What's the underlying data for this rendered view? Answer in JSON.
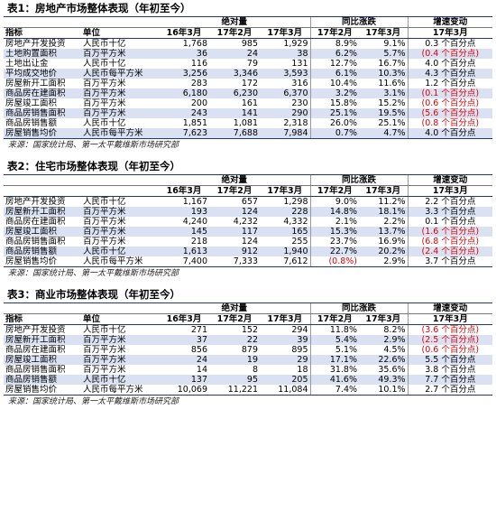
{
  "tables": [
    {
      "title": "表1：房地产市场整体表现（年初至今）",
      "group_headers": {
        "abs": "绝对量",
        "yoy": "同比涨跌",
        "chg": "增速变动"
      },
      "col_headers": [
        "指标",
        "单位",
        "16年3月",
        "17年2月",
        "17年3月",
        "17年2月",
        "17年3月",
        "17年3月"
      ],
      "rows": [
        {
          "name": "房地产开发投资",
          "unit": "人民币十亿",
          "a": "1,768",
          "b": "985",
          "c": "1,929",
          "d": "8.9%",
          "e": "9.1%",
          "f": "0.3 个百分点",
          "neg_d": false,
          "neg_f": false
        },
        {
          "name": "土地购置面积",
          "unit": "百万平方米",
          "a": "36",
          "b": "24",
          "c": "38",
          "d": "6.2%",
          "e": "5.7%",
          "f": "(0.4 个百分点)",
          "neg_d": false,
          "neg_f": true
        },
        {
          "name": "土地出让金",
          "unit": "人民币十亿",
          "a": "116",
          "b": "79",
          "c": "131",
          "d": "12.7%",
          "e": "16.7%",
          "f": "4.0 个百分点",
          "neg_d": false,
          "neg_f": false
        },
        {
          "name": "平均成交地价",
          "unit": "人民币每平方米",
          "a": "3,256",
          "b": "3,346",
          "c": "3,593",
          "d": "6.1%",
          "e": "10.3%",
          "f": "4.3 个百分点",
          "neg_d": false,
          "neg_f": false
        },
        {
          "name": "房屋新开工面积",
          "unit": "百万平方米",
          "a": "283",
          "b": "172",
          "c": "316",
          "d": "10.4%",
          "e": "11.6%",
          "f": "1.2 个百分点",
          "neg_d": false,
          "neg_f": false
        },
        {
          "name": "商品房在建面积",
          "unit": "百万平方米",
          "a": "6,180",
          "b": "6,230",
          "c": "6,370",
          "d": "3.2%",
          "e": "3.1%",
          "f": "(0.1 个百分点)",
          "neg_d": false,
          "neg_f": true
        },
        {
          "name": "房屋竣工面积",
          "unit": "百万平方米",
          "a": "200",
          "b": "161",
          "c": "230",
          "d": "15.8%",
          "e": "15.2%",
          "f": "(0.6 个百分点)",
          "neg_d": false,
          "neg_f": true
        },
        {
          "name": "商品房销售面积",
          "unit": "百万平方米",
          "a": "243",
          "b": "141",
          "c": "290",
          "d": "25.1%",
          "e": "19.5%",
          "f": "(5.6 个百分点)",
          "neg_d": false,
          "neg_f": true
        },
        {
          "name": "商品房销售额",
          "unit": "人民币十亿",
          "a": "1,851",
          "b": "1,081",
          "c": "2,318",
          "d": "26.0%",
          "e": "25.1%",
          "f": "(0.8 个百分点)",
          "neg_d": false,
          "neg_f": true
        },
        {
          "name": "房屋销售均价",
          "unit": "人民币每平方米",
          "a": "7,623",
          "b": "7,688",
          "c": "7,984",
          "d": "0.7%",
          "e": "4.7%",
          "f": "4.0 个百分点",
          "neg_d": false,
          "neg_f": false
        }
      ],
      "source": "来源：国家统计局、第一太平戴维斯市场研究部"
    },
    {
      "title": "表2：住宅市场整体表现（年初至今）",
      "group_headers": {
        "abs": "绝对量",
        "yoy": "同比涨跌",
        "chg": "增速变动"
      },
      "col_headers": [
        "",
        "",
        "16年3月",
        "17年2月",
        "17年3月",
        "17年2月",
        "17年3月",
        "17年3月"
      ],
      "rows": [
        {
          "name": "房地产开发投资",
          "unit": "人民币十亿",
          "a": "1,167",
          "b": "657",
          "c": "1,298",
          "d": "9.0%",
          "e": "11.2%",
          "f": "2.2 个百分点",
          "neg_d": false,
          "neg_f": false
        },
        {
          "name": "房屋新开工面积",
          "unit": "百万平方米",
          "a": "193",
          "b": "124",
          "c": "228",
          "d": "14.8%",
          "e": "18.1%",
          "f": "3.3 个百分点",
          "neg_d": false,
          "neg_f": false
        },
        {
          "name": "商品房在建面积",
          "unit": "百万平方米",
          "a": "4,240",
          "b": "4,232",
          "c": "4,332",
          "d": "2.1%",
          "e": "2.2%",
          "f": "0.1 个百分点",
          "neg_d": false,
          "neg_f": false
        },
        {
          "name": "房屋竣工面积",
          "unit": "百万平方米",
          "a": "145",
          "b": "117",
          "c": "165",
          "d": "15.3%",
          "e": "13.7%",
          "f": "(1.6 个百分点)",
          "neg_d": false,
          "neg_f": true
        },
        {
          "name": "商品房销售面积",
          "unit": "百万平方米",
          "a": "218",
          "b": "124",
          "c": "255",
          "d": "23.7%",
          "e": "16.9%",
          "f": "(6.8 个百分点)",
          "neg_d": false,
          "neg_f": true
        },
        {
          "name": "商品房销售额",
          "unit": "人民币十亿",
          "a": "1,613",
          "b": "912",
          "c": "1,940",
          "d": "22.7%",
          "e": "20.2%",
          "f": "(2.4 个百分点)",
          "neg_d": false,
          "neg_f": true
        },
        {
          "name": "房屋销售均价",
          "unit": "人民币每平方米",
          "a": "7,400",
          "b": "7,333",
          "c": "7,612",
          "d": "(0.8%)",
          "e": "2.9%",
          "f": "3.7 个百分点",
          "neg_d": true,
          "neg_f": false
        }
      ],
      "source": "来源：国家统计局、第一太平戴维斯市场研究部"
    },
    {
      "title": "表3：商业市场整体表现（年初至今）",
      "group_headers": {
        "abs": "绝对量",
        "yoy": "同比涨跌",
        "chg": "增速变动"
      },
      "col_headers": [
        "指标",
        "单位",
        "16年3月",
        "17年2月",
        "17年3月",
        "17年2月",
        "17年3月",
        "17年3月"
      ],
      "rows": [
        {
          "name": "房地产开发投资",
          "unit": "人民币十亿",
          "a": "271",
          "b": "152",
          "c": "294",
          "d": "11.8%",
          "e": "8.2%",
          "f": "(3.6 个百分点)",
          "neg_d": false,
          "neg_f": true
        },
        {
          "name": "房屋新开工面积",
          "unit": "百万平方米",
          "a": "37",
          "b": "22",
          "c": "39",
          "d": "5.4%",
          "e": "2.9%",
          "f": "(2.5 个百分点)",
          "neg_d": false,
          "neg_f": true
        },
        {
          "name": "商品房在建面积",
          "unit": "百万平方米",
          "a": "856",
          "b": "879",
          "c": "895",
          "d": "5.1%",
          "e": "4.5%",
          "f": "(0.6 个百分点)",
          "neg_d": false,
          "neg_f": true
        },
        {
          "name": "房屋竣工面积",
          "unit": "百万平方米",
          "a": "24",
          "b": "19",
          "c": "29",
          "d": "17.1%",
          "e": "22.6%",
          "f": "5.5 个百分点",
          "neg_d": false,
          "neg_f": false
        },
        {
          "name": "商品房销售面积",
          "unit": "百万平方米",
          "a": "14",
          "b": "8",
          "c": "18",
          "d": "31.8%",
          "e": "35.6%",
          "f": "3.8 个百分点",
          "neg_d": false,
          "neg_f": false
        },
        {
          "name": "商品房销售额",
          "unit": "人民币十亿",
          "a": "137",
          "b": "95",
          "c": "205",
          "d": "41.6%",
          "e": "49.3%",
          "f": "7.7 个百分点",
          "neg_d": false,
          "neg_f": false
        },
        {
          "name": "房屋销售均价",
          "unit": "人民币每平方米",
          "a": "10,069",
          "b": "11,221",
          "c": "11,084",
          "d": "7.4%",
          "e": "10.1%",
          "f": "2.7 个百分点",
          "neg_d": false,
          "neg_f": false
        }
      ],
      "source": "来源：国家统计局、第一太平戴维斯市场研究部"
    }
  ],
  "colors": {
    "shade": "#d9e1f2",
    "negative": "#e00000",
    "rule": "#1f3a6f"
  }
}
